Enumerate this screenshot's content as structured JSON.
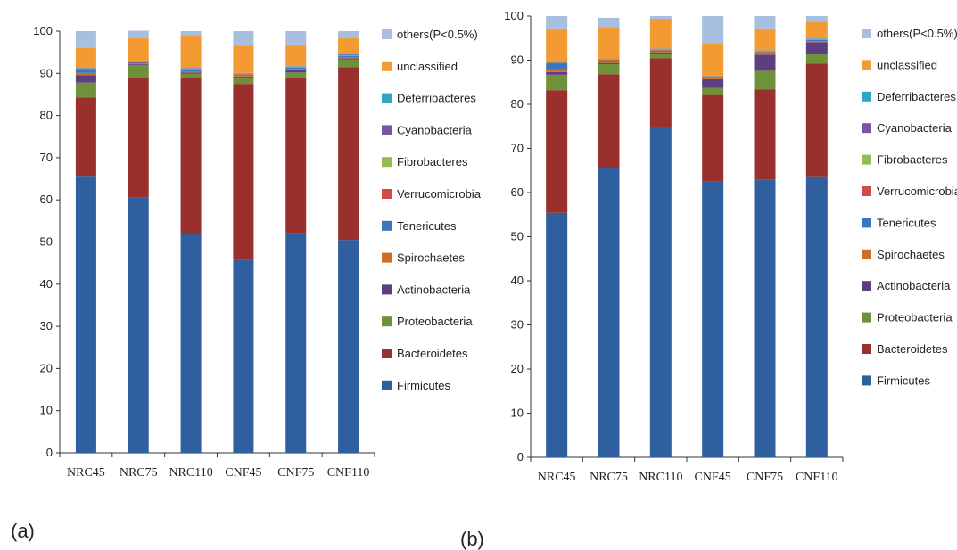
{
  "colors": {
    "Firmicutes": "#2f5f9e",
    "Bacteroidetes": "#9a302d",
    "Proteobacteria": "#6e913a",
    "Actinobacteria": "#5b3f80",
    "Spirochaetes": "#cf6e23",
    "Tenericutes": "#3b76c0",
    "Verrucomicrobia": "#d04a48",
    "Fibrobacteres": "#95bb52",
    "Cyanobacteria": "#7a55a3",
    "Deferribacteres": "#2ea7c3",
    "unclassified": "#f39a32",
    "others(P<0.5%)": "#a8bfe0"
  },
  "legend": [
    "others(P<0.5%)",
    "unclassified",
    "Deferribacteres",
    "Cyanobacteria",
    "Fibrobacteres",
    "Verrucomicrobia",
    "Tenericutes",
    "Spirochaetes",
    "Actinobacteria",
    "Proteobacteria",
    "Bacteroidetes",
    "Firmicutes"
  ],
  "panel_labels": [
    "(a)",
    "(b)"
  ],
  "chart_data": [
    {
      "type": "bar",
      "stacked": true,
      "categories": [
        "NRC45",
        "NRC75",
        "NRC110",
        "CNF45",
        "CNF75",
        "CNF110"
      ],
      "ylim": [
        0,
        100
      ],
      "yticks": [
        0,
        10,
        20,
        30,
        40,
        50,
        60,
        70,
        80,
        90,
        100
      ],
      "series": [
        {
          "name": "Firmicutes",
          "values": [
            65.5,
            60.5,
            52,
            45.8,
            52.2,
            50.5
          ]
        },
        {
          "name": "Bacteroidetes",
          "values": [
            18.8,
            28.3,
            37,
            41.7,
            36.6,
            41
          ]
        },
        {
          "name": "Proteobacteria",
          "values": [
            3.5,
            3.2,
            0.9,
            1.4,
            1.4,
            1.8
          ]
        },
        {
          "name": "Actinobacteria",
          "values": [
            1.8,
            0.2,
            0.3,
            0.3,
            0.7,
            0.3
          ]
        },
        {
          "name": "Spirochaetes",
          "values": [
            0.5,
            0.1,
            0.2,
            0.2,
            0.2,
            0.2
          ]
        },
        {
          "name": "Tenericutes",
          "values": [
            0.8,
            0.2,
            0.4,
            0.2,
            0.3,
            0.3
          ]
        },
        {
          "name": "Verrucomicrobia",
          "values": [
            0.2,
            0.1,
            0.2,
            0.2,
            0.1,
            0.1
          ]
        },
        {
          "name": "Fibrobacteres",
          "values": [
            0.1,
            0.1,
            0.1,
            0.1,
            0.1,
            0.1
          ]
        },
        {
          "name": "Cyanobacteria",
          "values": [
            0.1,
            0.1,
            0.1,
            0.1,
            0.1,
            0.1
          ]
        },
        {
          "name": "Deferribacteres",
          "values": [
            0.1,
            0.1,
            0.1,
            0.1,
            0.1,
            0.1
          ]
        },
        {
          "name": "unclassified",
          "values": [
            4.6,
            5.4,
            7.8,
            6.4,
            4.8,
            3.8
          ]
        },
        {
          "name": "others(P<0.5%)",
          "values": [
            4.0,
            1.8,
            0.9,
            3.5,
            3.4,
            1.7
          ]
        }
      ]
    },
    {
      "type": "bar",
      "stacked": true,
      "categories": [
        "NRC45",
        "NRC75",
        "NRC110",
        "CNF45",
        "CNF75",
        "CNF110"
      ],
      "ylim": [
        0,
        100
      ],
      "yticks": [
        0,
        10,
        20,
        30,
        40,
        50,
        60,
        70,
        80,
        90,
        100
      ],
      "series": [
        {
          "name": "Firmicutes",
          "values": [
            55.4,
            65.5,
            74.8,
            62.5,
            63,
            63.5
          ]
        },
        {
          "name": "Bacteroidetes",
          "values": [
            27.8,
            21.3,
            15.6,
            19.6,
            20.4,
            25.7
          ]
        },
        {
          "name": "Proteobacteria",
          "values": [
            3.5,
            2.3,
            0.9,
            1.6,
            4.2,
            2.1
          ]
        },
        {
          "name": "Actinobacteria",
          "values": [
            0.6,
            0.2,
            0.4,
            2.0,
            3.6,
            2.8
          ]
        },
        {
          "name": "Spirochaetes",
          "values": [
            0.6,
            0.2,
            0.2,
            0.2,
            0.2,
            0.2
          ]
        },
        {
          "name": "Tenericutes",
          "values": [
            1.3,
            0.3,
            0.3,
            0.3,
            0.4,
            0.3
          ]
        },
        {
          "name": "Verrucomicrobia",
          "values": [
            0.1,
            0.1,
            0.1,
            0.1,
            0.1,
            0.1
          ]
        },
        {
          "name": "Fibrobacteres",
          "values": [
            0.1,
            0.1,
            0.1,
            0.1,
            0.1,
            0.1
          ]
        },
        {
          "name": "Cyanobacteria",
          "values": [
            0.1,
            0.1,
            0.1,
            0.1,
            0.1,
            0.1
          ]
        },
        {
          "name": "Deferribacteres",
          "values": [
            0.2,
            0.1,
            0.1,
            0.1,
            0.1,
            0.1
          ]
        },
        {
          "name": "unclassified",
          "values": [
            7.5,
            7.3,
            6.8,
            7.3,
            5.0,
            3.7
          ]
        },
        {
          "name": "others(P<0.5%)",
          "values": [
            2.8,
            2.1,
            0.6,
            6.1,
            2.8,
            1.3
          ]
        }
      ]
    }
  ]
}
